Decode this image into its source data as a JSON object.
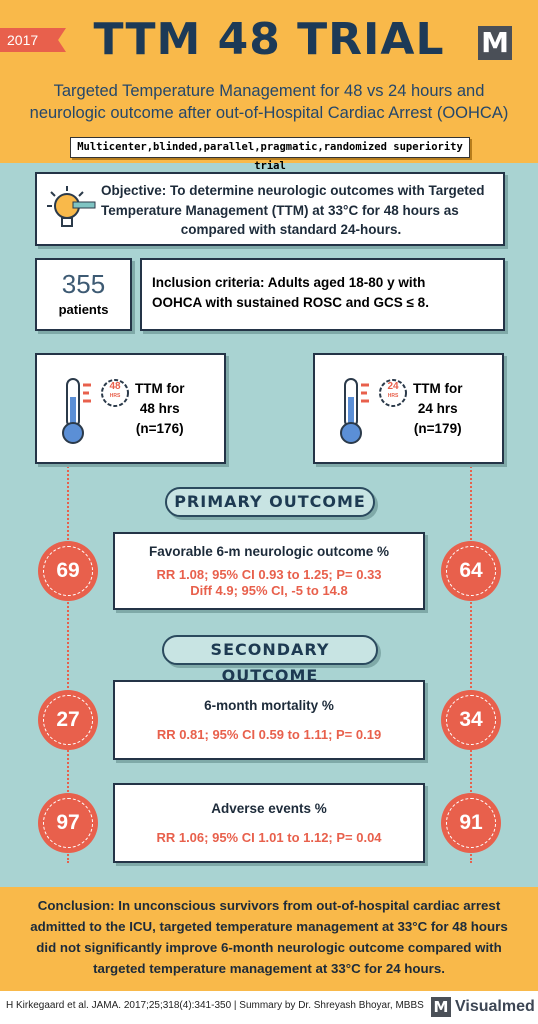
{
  "header": {
    "year": "2017",
    "title": "TTM 48 TRIAL",
    "logo": "M",
    "subtitle": [
      "Targeted Temperature Management for 48 vs 24 hours and",
      "neurologic outcome after out-of-Hospital Cardiac Arrest (OOHCA)"
    ],
    "design": "Multicenter,blinded,parallel,pragmatic,randomized superiority trial"
  },
  "objective": [
    "Objective: To determine neurologic outcomes with Targeted",
    "Temperature Management (TTM) at 33°C for 48 hours as",
    "compared with standard 24-hours."
  ],
  "patients": {
    "number": 355,
    "label": "patients"
  },
  "inclusion": [
    "Inclusion criteria: Adults aged 18-80 y with",
    "OOHCA with sustained ROSC and GCS ≤ 8."
  ],
  "arms": [
    {
      "badge": "48",
      "badge_unit": "HRS",
      "lines": [
        "TTM for",
        "48 hrs",
        "(n=176)"
      ]
    },
    {
      "badge": "24",
      "badge_unit": "HRS",
      "lines": [
        "TTM for",
        "24 hrs",
        "(n=179)"
      ]
    }
  ],
  "primary_heading": "PRIMARY OUTCOME",
  "secondary_heading": "SECONDARY OUTCOME",
  "outcomes": [
    {
      "name": "Favorable 6-m neurologic outcome %",
      "stats": [
        "RR 1.08; 95% CI 0.93 to 1.25; P= 0.33",
        "Diff 4.9; 95% CI, -5 to 14.8"
      ],
      "left": 69,
      "right": 64
    },
    {
      "name": "6-month mortality %",
      "stats": [
        "RR 0.81; 95% CI 0.59 to 1.11; P= 0.19"
      ],
      "left": 27,
      "right": 34
    },
    {
      "name": "Adverse events %",
      "stats": [
        "RR 1.06; 95% CI 1.01 to 1.12; P= 0.04"
      ],
      "left": 97,
      "right": 91
    }
  ],
  "conclusion": [
    "Conclusion: In unconscious survivors from out-of-hospital cardiac arrest",
    "admitted to the ICU, targeted temperature management at 33°C for 48 hours",
    "did not significantly improve 6-month neurologic outcome compared with",
    "targeted temperature management at 33°C for 24 hours."
  ],
  "footer": {
    "citation": "H Kirkegaard et al. JAMA. 2017;25;318(4):341-350 | Summary by Dr. Shreyash Bhoyar, MBBS",
    "brand_icon": "M",
    "brand": "Visualmed"
  }
}
